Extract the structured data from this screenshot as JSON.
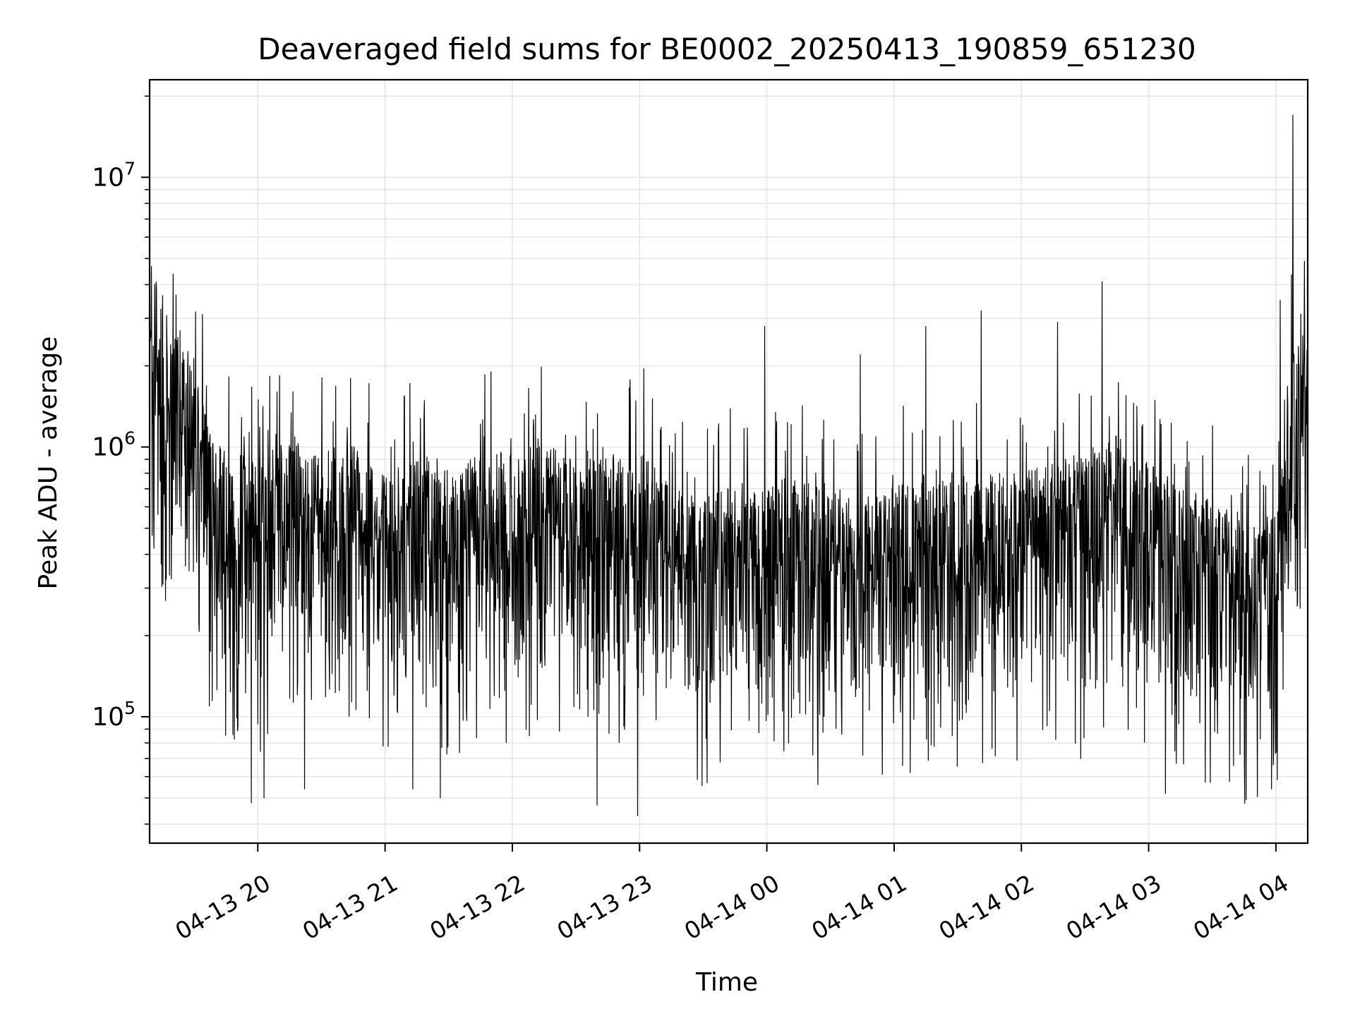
{
  "chart_data": {
    "type": "line",
    "title": "Deaveraged field sums for BE0002_20250413_190859_651230",
    "xlabel": "Time",
    "ylabel": "Peak ADU - average",
    "y_scale": "log",
    "ylim": [
      34000,
      23000000
    ],
    "xlim": [
      "2025-04-13 19:09",
      "2025-04-14 04:15"
    ],
    "grid": true,
    "line_color": "#000000",
    "grid_color": "#e6e6e6",
    "x_ticks": [
      {
        "value": "2025-04-13 20:00",
        "label": "04-13 20"
      },
      {
        "value": "2025-04-13 21:00",
        "label": "04-13 21"
      },
      {
        "value": "2025-04-13 22:00",
        "label": "04-13 22"
      },
      {
        "value": "2025-04-13 23:00",
        "label": "04-13 23"
      },
      {
        "value": "2025-04-14 00:00",
        "label": "04-14 00"
      },
      {
        "value": "2025-04-14 01:00",
        "label": "04-14 01"
      },
      {
        "value": "2025-04-14 02:00",
        "label": "04-14 02"
      },
      {
        "value": "2025-04-14 03:00",
        "label": "04-14 03"
      },
      {
        "value": "2025-04-14 04:00",
        "label": "04-14 04"
      }
    ],
    "y_ticks": [
      {
        "value": 100000,
        "base": "10",
        "exp": "5"
      },
      {
        "value": 1000000,
        "base": "10",
        "exp": "6"
      },
      {
        "value": 10000000,
        "base": "10",
        "exp": "7"
      }
    ],
    "series": [
      {
        "x": [
          "2025-04-13 19:09",
          "2025-04-13 19:15",
          "2025-04-13 19:21",
          "2025-04-13 19:27",
          "2025-04-13 19:33",
          "2025-04-13 19:40",
          "2025-04-13 19:50",
          "2025-04-13 20:00",
          "2025-04-13 20:15",
          "2025-04-13 20:30",
          "2025-04-13 20:45",
          "2025-04-13 21:00",
          "2025-04-13 21:15",
          "2025-04-13 21:30",
          "2025-04-13 21:45",
          "2025-04-13 22:00",
          "2025-04-13 22:15",
          "2025-04-13 22:30",
          "2025-04-13 22:45",
          "2025-04-13 23:00",
          "2025-04-13 23:15",
          "2025-04-13 23:30",
          "2025-04-13 23:45",
          "2025-04-14 00:00",
          "2025-04-14 00:15",
          "2025-04-14 00:30",
          "2025-04-14 00:45",
          "2025-04-14 01:00",
          "2025-04-14 01:15",
          "2025-04-14 01:30",
          "2025-04-14 01:45",
          "2025-04-14 02:00",
          "2025-04-14 02:15",
          "2025-04-14 02:30",
          "2025-04-14 02:45",
          "2025-04-14 03:00",
          "2025-04-14 03:15",
          "2025-04-14 03:30",
          "2025-04-14 03:45",
          "2025-04-14 04:00",
          "2025-04-14 04:05",
          "2025-04-14 04:10",
          "2025-04-14 04:15"
        ],
        "y": [
          1800000,
          1900000,
          1700000,
          1600000,
          1100000,
          650000,
          600000,
          550000,
          700000,
          600000,
          650000,
          500000,
          600000,
          550000,
          600000,
          600000,
          650000,
          550000,
          600000,
          600000,
          450000,
          400000,
          500000,
          450000,
          500000,
          450000,
          400000,
          450000,
          500000,
          450000,
          500000,
          500000,
          550000,
          600000,
          700000,
          550000,
          450000,
          400000,
          350000,
          350000,
          1200000,
          1800000,
          1500000
        ],
        "peaks_x": [
          "2025-04-13 19:12",
          "2025-04-13 19:34",
          "2025-04-13 20:09",
          "2025-04-13 21:50",
          "2025-04-13 23:02",
          "2025-04-13 23:59",
          "2025-04-14 00:44",
          "2025-04-14 01:15",
          "2025-04-14 01:41",
          "2025-04-14 02:17",
          "2025-04-14 02:38",
          "2025-04-14 04:02",
          "2025-04-14 04:08"
        ],
        "peaks_y": [
          4100000,
          3100000,
          1600000,
          1900000,
          1950000,
          2800000,
          2200000,
          2800000,
          3200000,
          2900000,
          4100000,
          3500000,
          17000000
        ],
        "troughs_x": [
          "2025-04-13 19:57",
          "2025-04-13 20:03",
          "2025-04-13 20:22",
          "2025-04-13 21:13",
          "2025-04-13 21:26",
          "2025-04-13 22:40",
          "2025-04-13 22:59",
          "2025-04-13 23:38",
          "2025-04-14 00:24",
          "2025-04-14 01:04",
          "2025-04-14 01:58",
          "2025-04-14 02:28",
          "2025-04-14 03:08",
          "2025-04-14 03:40",
          "2025-04-14 03:59"
        ],
        "troughs_y": [
          48000,
          50000,
          54000,
          54000,
          50000,
          47000,
          43000,
          68000,
          56000,
          66000,
          69000,
          70000,
          52000,
          66000,
          78000
        ]
      }
    ]
  }
}
